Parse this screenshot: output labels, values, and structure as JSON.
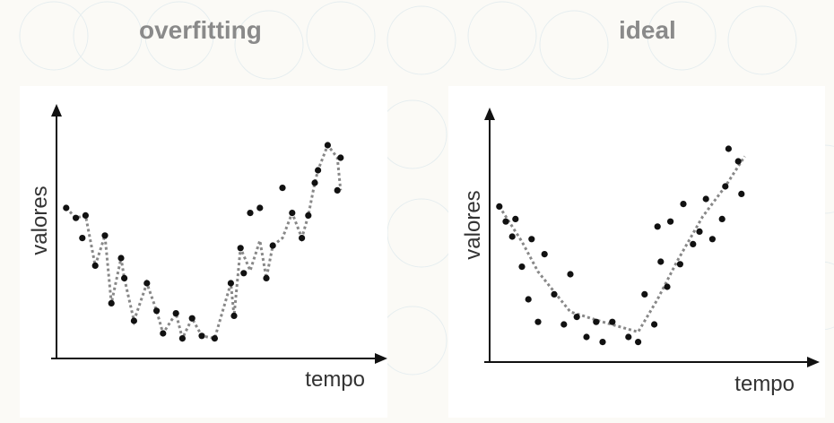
{
  "chart_data": [
    {
      "type": "scatter",
      "title": "overfitting",
      "xlabel": "tempo",
      "ylabel": "valores",
      "xlim": [
        0,
        100
      ],
      "ylim": [
        0,
        100
      ],
      "grid": false,
      "points": [
        [
          3,
          60
        ],
        [
          6,
          56
        ],
        [
          8,
          48
        ],
        [
          9,
          57
        ],
        [
          12,
          37
        ],
        [
          15,
          49
        ],
        [
          17,
          22
        ],
        [
          20,
          40
        ],
        [
          21,
          32
        ],
        [
          24,
          15
        ],
        [
          28,
          30
        ],
        [
          31,
          19
        ],
        [
          33,
          10
        ],
        [
          37,
          18
        ],
        [
          39,
          8
        ],
        [
          42,
          16
        ],
        [
          45,
          9
        ],
        [
          49,
          8
        ],
        [
          54,
          30
        ],
        [
          55,
          17
        ],
        [
          57,
          44
        ],
        [
          58,
          34
        ],
        [
          60,
          58
        ],
        [
          63,
          60
        ],
        [
          65,
          32
        ],
        [
          67,
          45
        ],
        [
          70,
          68
        ],
        [
          73,
          58
        ],
        [
          76,
          48
        ],
        [
          78,
          57
        ],
        [
          80,
          70
        ],
        [
          81,
          75
        ],
        [
          84,
          85
        ],
        [
          87,
          67
        ],
        [
          88,
          80
        ]
      ],
      "fit": {
        "style": "dotted",
        "points": [
          [
            3,
            60
          ],
          [
            6,
            56
          ],
          [
            9,
            57
          ],
          [
            12,
            37
          ],
          [
            15,
            49
          ],
          [
            17,
            22
          ],
          [
            20,
            40
          ],
          [
            21,
            32
          ],
          [
            24,
            15
          ],
          [
            28,
            30
          ],
          [
            31,
            19
          ],
          [
            33,
            10
          ],
          [
            37,
            18
          ],
          [
            39,
            8
          ],
          [
            42,
            16
          ],
          [
            45,
            9
          ],
          [
            49,
            8
          ],
          [
            54,
            30
          ],
          [
            55,
            17
          ],
          [
            57,
            44
          ],
          [
            60,
            35
          ],
          [
            63,
            47
          ],
          [
            65,
            32
          ],
          [
            67,
            45
          ],
          [
            70,
            48
          ],
          [
            73,
            58
          ],
          [
            76,
            48
          ],
          [
            78,
            57
          ],
          [
            80,
            70
          ],
          [
            81,
            75
          ],
          [
            84,
            85
          ],
          [
            87,
            80
          ],
          [
            88,
            67
          ]
        ]
      }
    },
    {
      "type": "scatter",
      "title": "ideal",
      "xlabel": "tempo",
      "ylabel": "valores",
      "xlim": [
        0,
        100
      ],
      "ylim": [
        0,
        100
      ],
      "grid": false,
      "points": [
        [
          3,
          62
        ],
        [
          5,
          56
        ],
        [
          7,
          50
        ],
        [
          8,
          57
        ],
        [
          10,
          38
        ],
        [
          12,
          25
        ],
        [
          13,
          49
        ],
        [
          15,
          16
        ],
        [
          17,
          43
        ],
        [
          20,
          27
        ],
        [
          23,
          15
        ],
        [
          25,
          35
        ],
        [
          27,
          18
        ],
        [
          30,
          10
        ],
        [
          33,
          16
        ],
        [
          35,
          8
        ],
        [
          38,
          16
        ],
        [
          43,
          10
        ],
        [
          46,
          8
        ],
        [
          48,
          27
        ],
        [
          51,
          15
        ],
        [
          52,
          54
        ],
        [
          53,
          40
        ],
        [
          55,
          30
        ],
        [
          56,
          56
        ],
        [
          59,
          39
        ],
        [
          60,
          63
        ],
        [
          63,
          47
        ],
        [
          65,
          52
        ],
        [
          67,
          65
        ],
        [
          69,
          49
        ],
        [
          72,
          57
        ],
        [
          73,
          70
        ],
        [
          74,
          85
        ],
        [
          77,
          80
        ],
        [
          78,
          67
        ]
      ],
      "fit": {
        "style": "dotted",
        "points": [
          [
            3,
            62
          ],
          [
            10,
            48
          ],
          [
            15,
            36
          ],
          [
            25,
            20
          ],
          [
            35,
            16
          ],
          [
            46,
            12
          ],
          [
            52,
            25
          ],
          [
            58,
            40
          ],
          [
            66,
            58
          ],
          [
            73,
            70
          ],
          [
            79,
            82
          ]
        ]
      }
    }
  ]
}
